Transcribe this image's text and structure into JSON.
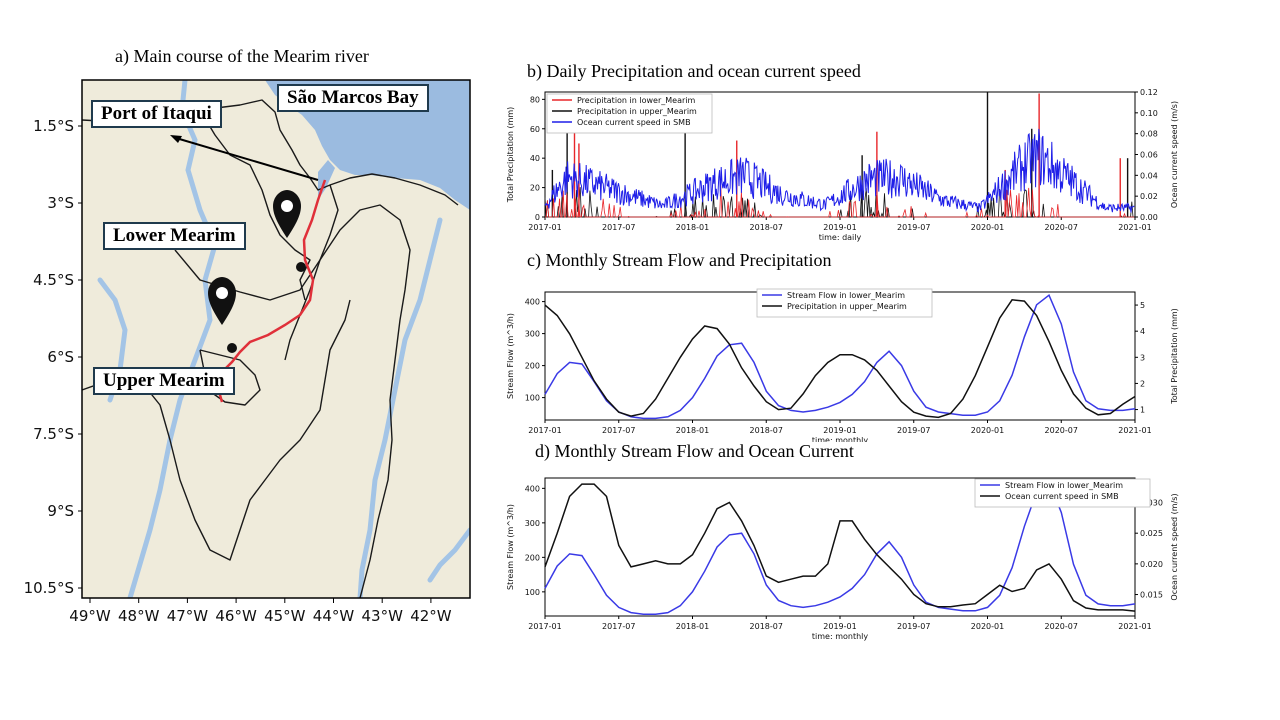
{
  "map": {
    "title": "a) Main course of the Mearim river",
    "labels": {
      "port": "Port of Itaqui",
      "bay": "São Marcos Bay",
      "lower": "Lower Mearim",
      "upper": "Upper Mearim"
    },
    "lat_ticks": [
      "1.5°S",
      "3°S",
      "4.5°S",
      "6°S",
      "7.5°S",
      "9°S",
      "10.5°S"
    ],
    "lon_ticks": [
      "49°W",
      "48°W",
      "47°W",
      "46°W",
      "45°W",
      "44°W",
      "43°W",
      "42°W"
    ],
    "colors": {
      "land": "#efebdb",
      "ocean": "#9bbbe0",
      "river": "#a3c4e6",
      "mearim": "#e0303a",
      "border": "#1a1a1a"
    }
  },
  "chart_data": [
    {
      "id": "b",
      "type": "line",
      "title": "b) Daily Precipitation and ocean current speed",
      "xlabel": "time: daily",
      "ylabel": "Total Precipitation (mm)",
      "y2label": "Ocean current speed (m/s)",
      "xticks": [
        "2017-01",
        "2017-07",
        "2018-01",
        "2018-07",
        "2019-01",
        "2019-07",
        "2020-01",
        "2020-07",
        "2021-01"
      ],
      "yticks": [
        "0",
        "20",
        "40",
        "60",
        "80"
      ],
      "y2ticks": [
        "0.00",
        "0.02",
        "0.04",
        "0.06",
        "0.08",
        "0.10",
        "0.12"
      ],
      "ylim": [
        0,
        85
      ],
      "y2lim": [
        0,
        0.12
      ],
      "legend_position": "top-left",
      "series": [
        {
          "name": "Precipitation in lower_Mearim",
          "color": "#e8262a",
          "axis": "left",
          "peaks": [
            [
              2017.2,
              58
            ],
            [
              2017.23,
              50
            ],
            [
              2018.3,
              52
            ],
            [
              2019.25,
              58
            ],
            [
              2020.12,
              32
            ],
            [
              2020.35,
              84
            ],
            [
              2020.9,
              40
            ]
          ]
        },
        {
          "name": "Precipitation in upper_Mearim",
          "color": "#111111",
          "axis": "left",
          "peaks": [
            [
              2017.05,
              32
            ],
            [
              2017.15,
              68
            ],
            [
              2017.95,
              66
            ],
            [
              2019.15,
              42
            ],
            [
              2020.0,
              85
            ],
            [
              2020.3,
              60
            ],
            [
              2020.95,
              40
            ]
          ]
        },
        {
          "name": "Ocean current speed in SMB",
          "color": "#1f1fe8",
          "axis": "right",
          "envelope": [
            [
              2017.0,
              0.015
            ],
            [
              2017.15,
              0.052
            ],
            [
              2017.3,
              0.045
            ],
            [
              2017.55,
              0.03
            ],
            [
              2017.8,
              0.015
            ],
            [
              2018.15,
              0.045
            ],
            [
              2018.35,
              0.055
            ],
            [
              2018.6,
              0.03
            ],
            [
              2018.9,
              0.016
            ],
            [
              2019.2,
              0.05
            ],
            [
              2019.4,
              0.052
            ],
            [
              2019.7,
              0.022
            ],
            [
              2019.95,
              0.012
            ],
            [
              2020.25,
              0.07
            ],
            [
              2020.35,
              0.08
            ],
            [
              2020.55,
              0.05
            ],
            [
              2020.8,
              0.012
            ],
            [
              2021.0,
              0.012
            ]
          ]
        }
      ]
    },
    {
      "id": "c",
      "type": "line",
      "title": "c) Monthly Stream Flow and Precipitation",
      "xlabel": "time: monthly",
      "ylabel": "Stream Flow (m^3/h)",
      "y2label": "Total Precipitation (mm)",
      "xticks": [
        "2017-01",
        "2017-07",
        "2018-01",
        "2018-07",
        "2019-01",
        "2019-07",
        "2020-01",
        "2020-07",
        "2021-01"
      ],
      "yticks": [
        "100",
        "200",
        "300",
        "400"
      ],
      "y2ticks": [
        "1",
        "2",
        "3",
        "4",
        "5"
      ],
      "ylim": [
        30,
        430
      ],
      "y2lim": [
        0.6,
        5.5
      ],
      "legend_position": "top-center",
      "x": [
        2017.0,
        2017.083,
        2017.167,
        2017.25,
        2017.333,
        2017.417,
        2017.5,
        2017.583,
        2017.667,
        2017.75,
        2017.833,
        2017.917,
        2018.0,
        2018.083,
        2018.167,
        2018.25,
        2018.333,
        2018.417,
        2018.5,
        2018.583,
        2018.667,
        2018.75,
        2018.833,
        2018.917,
        2019.0,
        2019.083,
        2019.167,
        2019.25,
        2019.333,
        2019.417,
        2019.5,
        2019.583,
        2019.667,
        2019.75,
        2019.833,
        2019.917,
        2020.0,
        2020.083,
        2020.167,
        2020.25,
        2020.333,
        2020.417,
        2020.5,
        2020.583,
        2020.667,
        2020.75,
        2020.833,
        2020.917,
        2021.0
      ],
      "series": [
        {
          "name": "Stream Flow in lower_Mearim",
          "color": "#3a3ae6",
          "axis": "left",
          "values": [
            110,
            175,
            210,
            205,
            150,
            90,
            55,
            40,
            35,
            35,
            40,
            60,
            100,
            160,
            230,
            265,
            270,
            210,
            120,
            75,
            60,
            55,
            60,
            70,
            85,
            110,
            150,
            210,
            245,
            200,
            120,
            70,
            55,
            50,
            45,
            45,
            55,
            90,
            170,
            290,
            390,
            420,
            330,
            180,
            90,
            65,
            60,
            60,
            65
          ]
        },
        {
          "name": "Precipitation in upper_Mearim",
          "color": "#111111",
          "axis": "right",
          "values": [
            5.0,
            4.6,
            3.9,
            3.0,
            2.1,
            1.4,
            0.9,
            0.75,
            0.85,
            1.4,
            2.2,
            3.0,
            3.7,
            4.2,
            4.1,
            3.5,
            2.6,
            1.9,
            1.3,
            1.0,
            1.05,
            1.6,
            2.3,
            2.8,
            3.1,
            3.1,
            2.9,
            2.5,
            1.9,
            1.3,
            0.9,
            0.75,
            0.7,
            0.85,
            1.4,
            2.3,
            3.4,
            4.5,
            5.2,
            5.15,
            4.6,
            3.6,
            2.5,
            1.6,
            1.05,
            0.8,
            0.85,
            1.2,
            1.5
          ]
        }
      ]
    },
    {
      "id": "d",
      "type": "line",
      "title": "d) Monthly Stream Flow and Ocean Current",
      "xlabel": "time: monthly",
      "ylabel": "Stream Flow (m^3/h)",
      "y2label": "Ocean current speed (m/s)",
      "xticks": [
        "2017-01",
        "2017-07",
        "2018-01",
        "2018-07",
        "2019-01",
        "2019-07",
        "2020-01",
        "2020-07",
        "2021-01"
      ],
      "yticks": [
        "100",
        "200",
        "300",
        "400"
      ],
      "y2ticks": [
        "0.015",
        "0.020",
        "0.025",
        "0.030"
      ],
      "ylim": [
        30,
        430
      ],
      "y2lim": [
        0.0115,
        0.034
      ],
      "legend_position": "top-right",
      "x": [
        2017.0,
        2017.083,
        2017.167,
        2017.25,
        2017.333,
        2017.417,
        2017.5,
        2017.583,
        2017.667,
        2017.75,
        2017.833,
        2017.917,
        2018.0,
        2018.083,
        2018.167,
        2018.25,
        2018.333,
        2018.417,
        2018.5,
        2018.583,
        2018.667,
        2018.75,
        2018.833,
        2018.917,
        2019.0,
        2019.083,
        2019.167,
        2019.25,
        2019.333,
        2019.417,
        2019.5,
        2019.583,
        2019.667,
        2019.75,
        2019.833,
        2019.917,
        2020.0,
        2020.083,
        2020.167,
        2020.25,
        2020.333,
        2020.417,
        2020.5,
        2020.583,
        2020.667,
        2020.75,
        2020.833,
        2020.917,
        2021.0
      ],
      "series": [
        {
          "name": "Stream Flow in lower_Mearim",
          "color": "#3a3ae6",
          "axis": "left",
          "values": [
            110,
            175,
            210,
            205,
            150,
            90,
            55,
            40,
            35,
            35,
            40,
            60,
            100,
            160,
            230,
            265,
            270,
            210,
            120,
            75,
            60,
            55,
            60,
            70,
            85,
            110,
            150,
            210,
            245,
            200,
            120,
            70,
            55,
            50,
            45,
            45,
            55,
            90,
            170,
            290,
            390,
            420,
            330,
            180,
            90,
            65,
            60,
            60,
            65
          ]
        },
        {
          "name": "Ocean current speed in SMB",
          "color": "#111111",
          "axis": "right",
          "values": [
            0.0195,
            0.025,
            0.031,
            0.033,
            0.033,
            0.031,
            0.023,
            0.0195,
            0.02,
            0.0205,
            0.02,
            0.02,
            0.0215,
            0.025,
            0.029,
            0.03,
            0.027,
            0.023,
            0.018,
            0.017,
            0.0175,
            0.018,
            0.018,
            0.02,
            0.027,
            0.027,
            0.024,
            0.0215,
            0.0195,
            0.0175,
            0.015,
            0.0135,
            0.013,
            0.013,
            0.0133,
            0.0135,
            0.015,
            0.0165,
            0.0155,
            0.016,
            0.019,
            0.02,
            0.0175,
            0.014,
            0.0128,
            0.0125,
            0.0125,
            0.0125,
            0.0123
          ]
        }
      ]
    }
  ]
}
